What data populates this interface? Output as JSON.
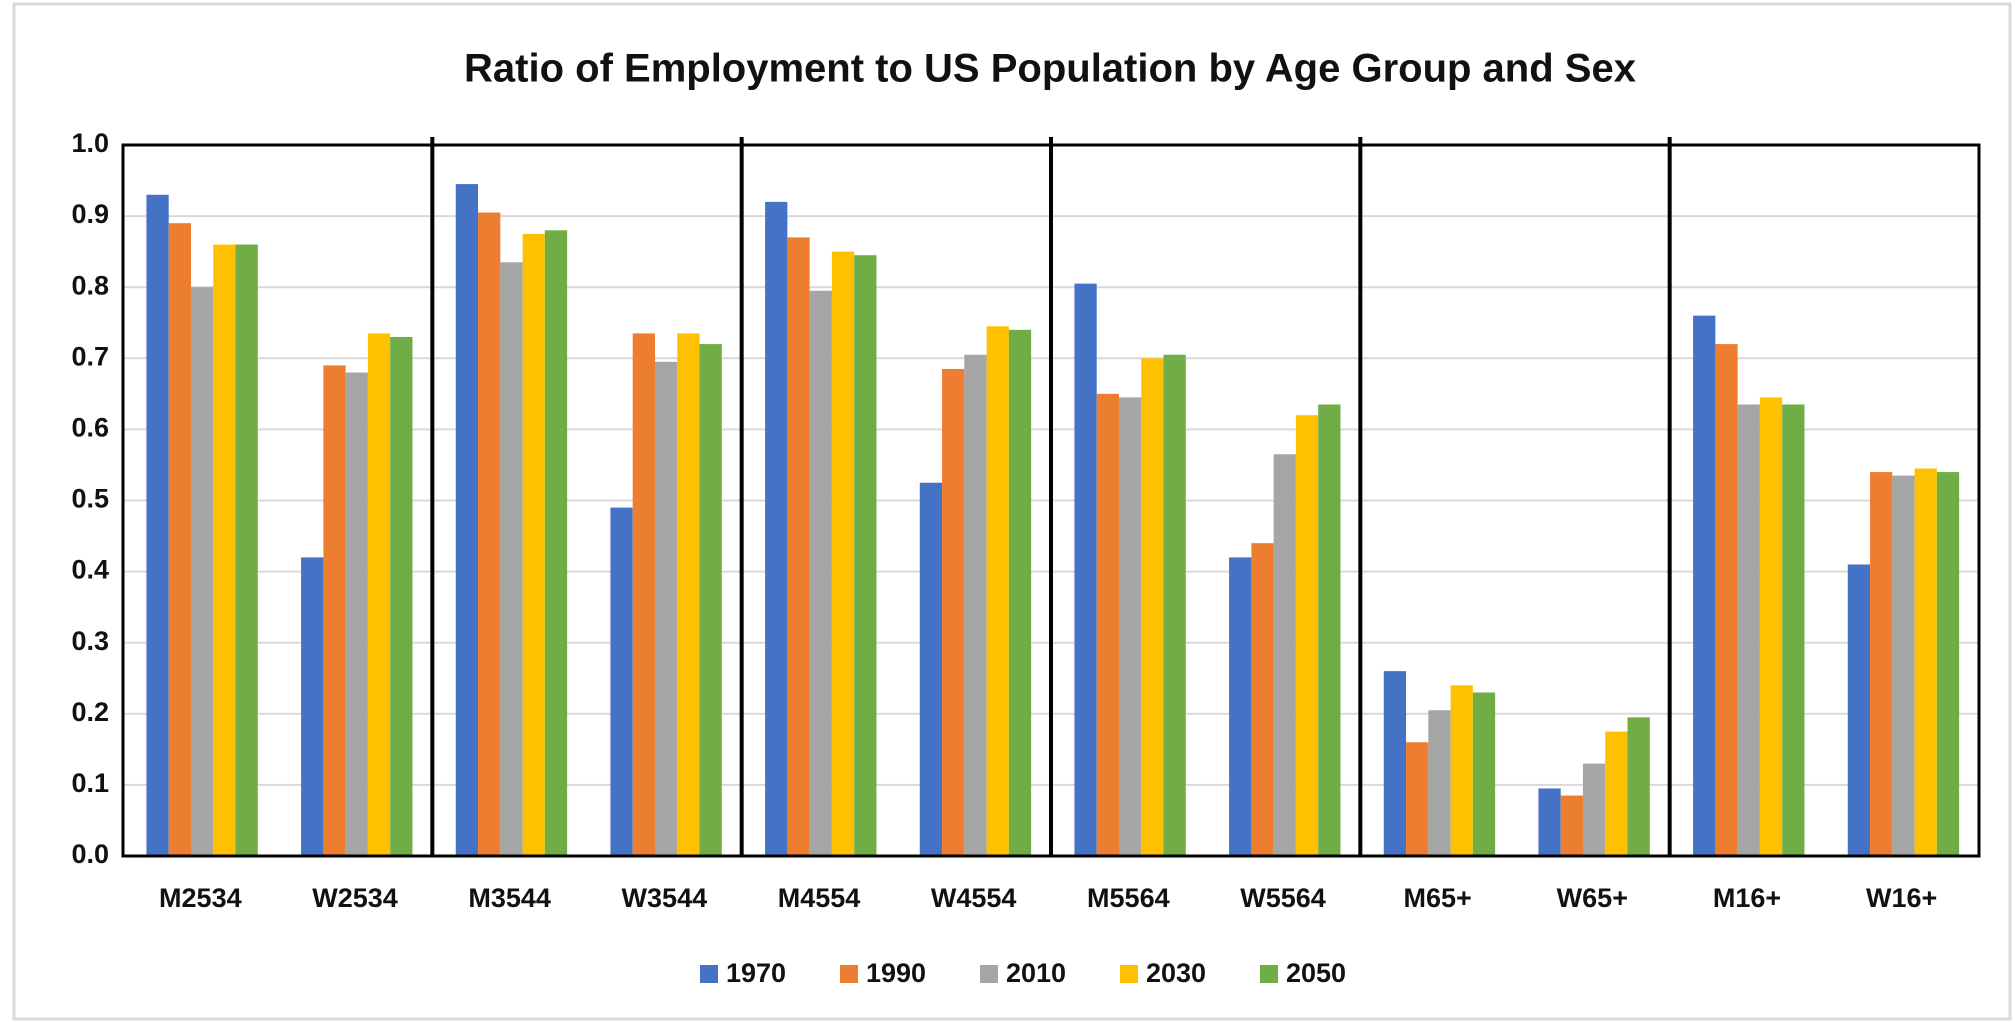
{
  "chart_data": {
    "type": "bar",
    "title": "Ratio of Employment to US Population by Age Group and Sex",
    "categories": [
      "M2534",
      "W2534",
      "M3544",
      "W3544",
      "M4554",
      "W4554",
      "M5564",
      "W5564",
      "M65+",
      "W65+",
      "M16+",
      "W16+"
    ],
    "series": [
      {
        "name": "1970",
        "color": "#4472c4",
        "values": [
          0.93,
          0.42,
          0.945,
          0.49,
          0.92,
          0.525,
          0.805,
          0.42,
          0.26,
          0.095,
          0.76,
          0.41
        ]
      },
      {
        "name": "1990",
        "color": "#ed7d31",
        "values": [
          0.89,
          0.69,
          0.905,
          0.735,
          0.87,
          0.685,
          0.65,
          0.44,
          0.16,
          0.085,
          0.72,
          0.54
        ]
      },
      {
        "name": "2010",
        "color": "#a5a5a5",
        "values": [
          0.8,
          0.68,
          0.835,
          0.695,
          0.795,
          0.705,
          0.645,
          0.565,
          0.205,
          0.13,
          0.635,
          0.535
        ]
      },
      {
        "name": "2030",
        "color": "#ffc000",
        "values": [
          0.86,
          0.735,
          0.875,
          0.735,
          0.85,
          0.745,
          0.7,
          0.62,
          0.24,
          0.175,
          0.645,
          0.545
        ]
      },
      {
        "name": "2050",
        "color": "#70ad47",
        "values": [
          0.86,
          0.73,
          0.88,
          0.72,
          0.845,
          0.74,
          0.705,
          0.635,
          0.23,
          0.195,
          0.635,
          0.54
        ]
      }
    ],
    "ylim": [
      0,
      1
    ],
    "yticks": [
      {
        "value": 0,
        "label": "0.0"
      },
      0.1,
      0.2,
      0.3,
      0.4,
      0.5,
      0.6,
      0.7,
      0.8,
      0.9,
      {
        "value": 1,
        "label": "1.0"
      }
    ],
    "grid": true,
    "legend": "bottom"
  }
}
